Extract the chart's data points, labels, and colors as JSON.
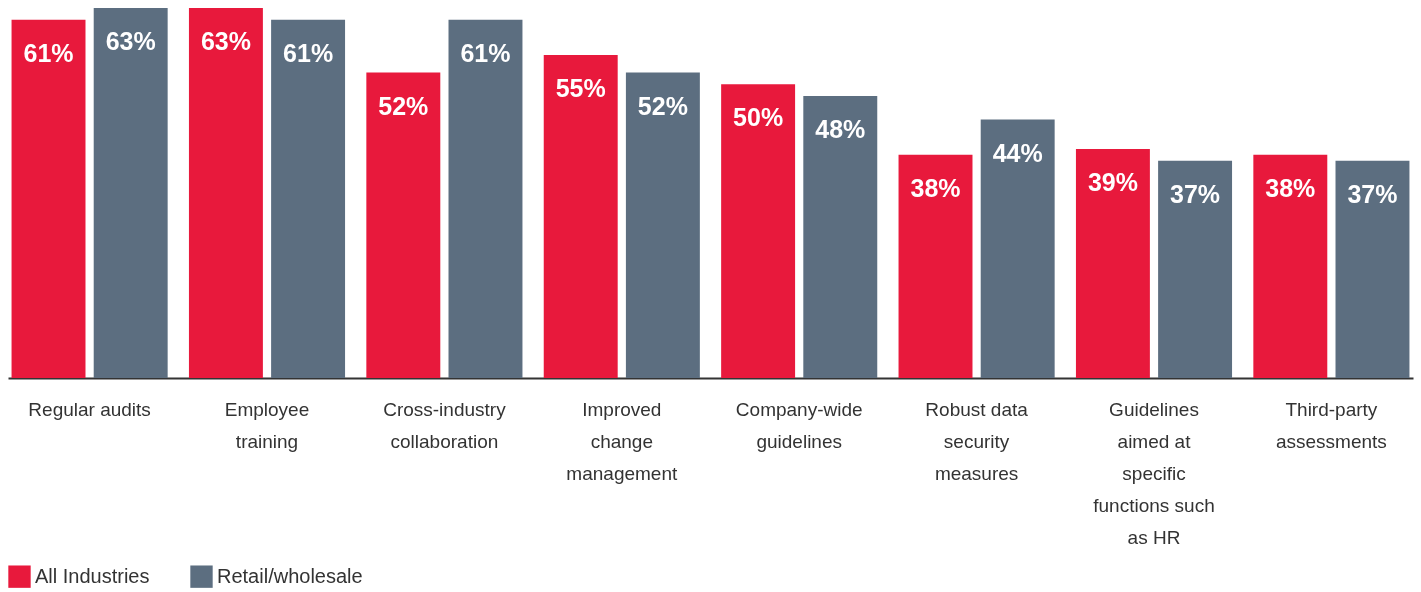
{
  "chart_data": {
    "type": "bar",
    "categories": [
      "Regular audits",
      "Employee training",
      "Cross-industry collaboration",
      "Improved change management",
      "Company-wide guidelines",
      "Robust data security measures",
      "Guidelines aimed at specific functions such as HR",
      "Third-party assessments"
    ],
    "series": [
      {
        "name": "All Industries",
        "color": "#e8193c",
        "values": [
          61,
          63,
          52,
          55,
          50,
          38,
          39,
          38
        ],
        "value_labels": [
          "61%",
          "63%",
          "52%",
          "55%",
          "50%",
          "38%",
          "39%",
          "38%"
        ]
      },
      {
        "name": "Retail/wholesale",
        "color": "#5c6e80",
        "values": [
          63,
          61,
          61,
          52,
          48,
          44,
          37,
          37
        ],
        "value_labels": [
          "63%",
          "61%",
          "61%",
          "52%",
          "48%",
          "44%",
          "37%",
          "37%"
        ]
      }
    ],
    "legend": "bottom left",
    "grid": false
  }
}
